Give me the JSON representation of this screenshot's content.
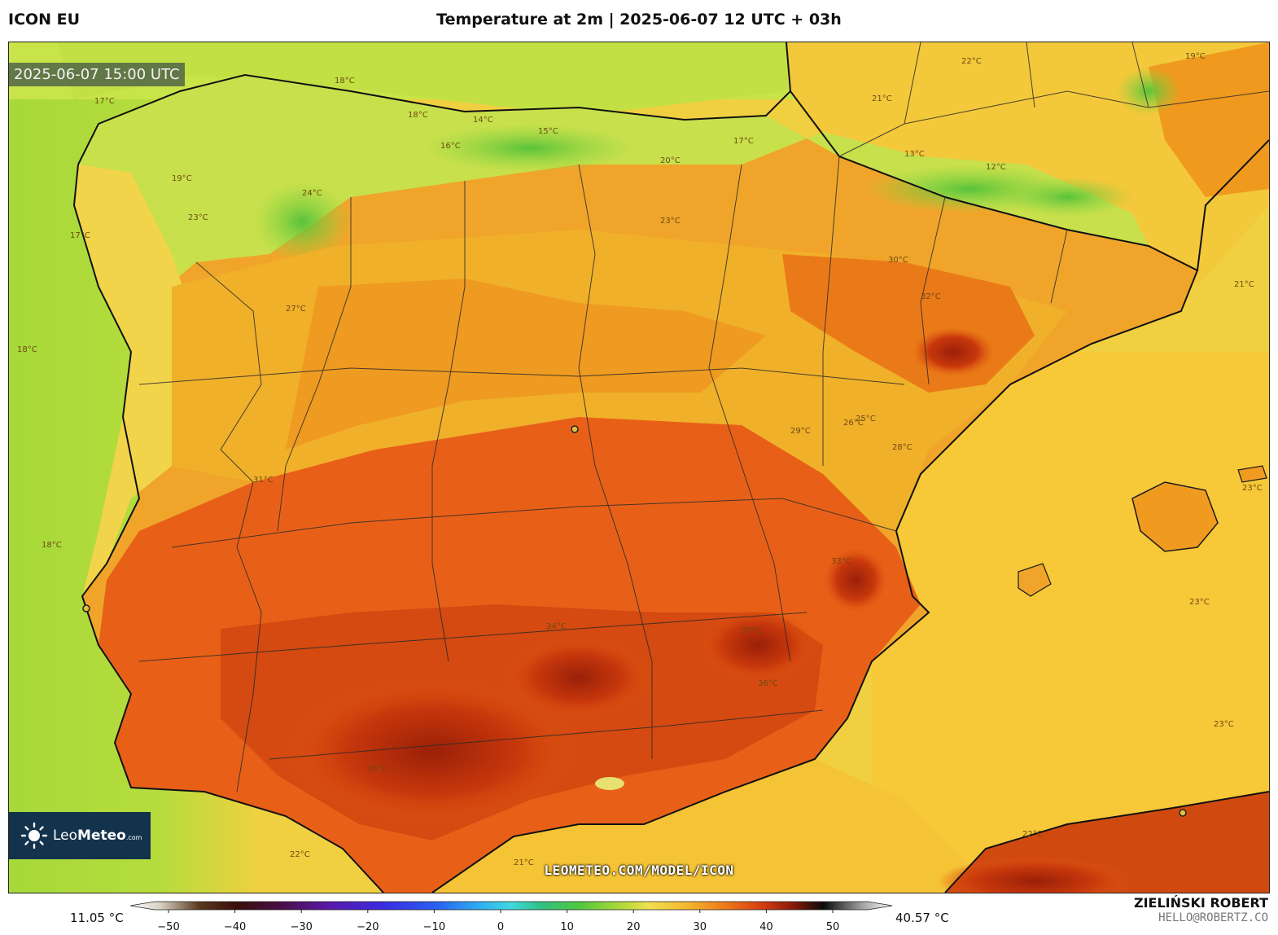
{
  "header": {
    "model": "ICON EU",
    "title": "Temperature at 2m | 2025-06-07 12 UTC + 03h"
  },
  "map": {
    "valid_time": "2025-06-07 15:00 UTC",
    "watermark": "LEOMETEO.COM/MODEL/ICON",
    "isotherm_labels": {
      "l1": "18°C",
      "l2": "17°C",
      "l3": "18°C",
      "l4": "14°C",
      "l5": "15°C",
      "l6": "16°C",
      "l7": "19°C",
      "l8": "17°C",
      "l9": "13°C",
      "l10": "12°C",
      "l11": "22°C",
      "l12": "19°C",
      "l13": "21°C",
      "l14": "24°C",
      "l15": "23°C",
      "l16": "27°C",
      "l17": "23°C",
      "l18": "30°C",
      "l19": "32°C",
      "l20": "31°C",
      "l21": "28°C",
      "l22": "26°C",
      "l23": "29°C",
      "l24": "33°C",
      "l25": "37°C",
      "l26": "34°C",
      "l27": "35°C",
      "l28": "36°C",
      "l29": "23°C",
      "l30": "21°C",
      "l31": "22°C",
      "l32": "18°C",
      "l33": "17°C",
      "l34": "21°C",
      "l35": "23°C",
      "l36": "22°C",
      "l37": "25°C",
      "l38": "20°C",
      "l39": "18°C",
      "l40": "23°C"
    },
    "colors": {
      "sea_cool": "#a6d93a",
      "sea_warm": "#f7c838",
      "north": "#8ed640",
      "warm": "#f0a018",
      "hot": "#e65a10",
      "very_hot": "#b8300c",
      "extreme": "#8a1a08"
    }
  },
  "logo": {
    "name_light": "Leo",
    "name_bold": "Meteo",
    "suffix": ".com"
  },
  "legend": {
    "min_value": "11.05 °C",
    "max_value": "40.57 °C",
    "ticks": [
      "−50",
      "−40",
      "−30",
      "−20",
      "−10",
      "0",
      "10",
      "20",
      "30",
      "40",
      "50"
    ]
  },
  "credits": {
    "author": "ZIELIŃSKI ROBERT",
    "email": "HELLO@ROBERTZ.CO"
  }
}
